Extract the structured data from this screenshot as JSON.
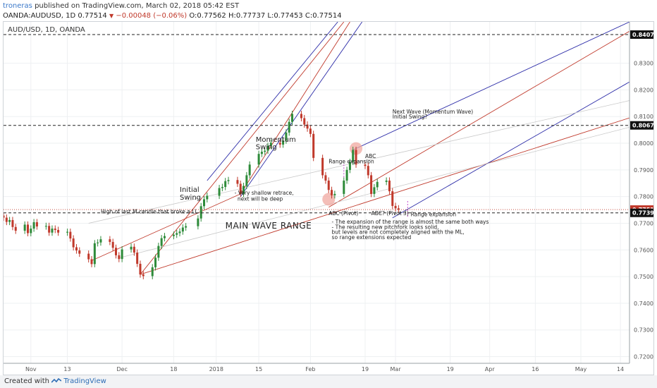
{
  "header": {
    "author": "troneras",
    "published_text": "published on TradingView.com, March 02, 2018 05:42 EST",
    "symbol": "OANDA:AUDUSD, 1D",
    "last": "0.77514",
    "change": "−0.00048 (−0.06%)",
    "ohlc": "O:0.77562 H:0.77737 L:0.77453 C:0.77514"
  },
  "footer": {
    "created_with": "Created with",
    "brand": "TradingView"
  },
  "colors": {
    "up": "#2e8b3a",
    "down": "#c0392b",
    "pitch_red": "#c0392b",
    "pitch_blue": "#2c2ca8",
    "guide": "#c9c9c9",
    "highlight": "#f0a8a0"
  },
  "chart_data": {
    "type": "candlestick",
    "title": "AUD/USD, 1D, OANDA",
    "y_range": [
      0.7175,
      0.8455
    ],
    "x_range": [
      "2017-10-23",
      "2018-05-17"
    ],
    "y_ticks": [
      "0.72000",
      "0.73000",
      "0.74000",
      "0.75000",
      "0.76000",
      "0.77000",
      "0.78000",
      "0.79000",
      "0.80000",
      "0.81000",
      "0.82000",
      "0.83000"
    ],
    "x_ticks": [
      {
        "date": "2017-11-01",
        "label": "Nov"
      },
      {
        "date": "2017-11-13",
        "label": "13"
      },
      {
        "date": "2017-12-01",
        "label": "Dec"
      },
      {
        "date": "2017-12-18",
        "label": "18"
      },
      {
        "date": "2018-01-01",
        "label": "2018"
      },
      {
        "date": "2018-01-15",
        "label": "15"
      },
      {
        "date": "2018-02-01",
        "label": "Feb"
      },
      {
        "date": "2018-02-19",
        "label": "19"
      },
      {
        "date": "2018-03-01",
        "label": "Mar"
      },
      {
        "date": "2018-03-19",
        "label": "19"
      },
      {
        "date": "2018-04-01",
        "label": "Apr"
      },
      {
        "date": "2018-04-16",
        "label": "16"
      },
      {
        "date": "2018-05-01",
        "label": "May"
      },
      {
        "date": "2018-05-14",
        "label": "14"
      }
    ],
    "closes": [
      [
        "2017-10-23",
        0.7721
      ],
      [
        "2017-10-24",
        0.7705
      ],
      [
        "2017-10-25",
        0.7712
      ],
      [
        "2017-10-26",
        0.7686
      ],
      [
        "2017-10-27",
        0.7672
      ],
      [
        "2017-10-30",
        0.7695
      ],
      [
        "2017-10-31",
        0.7663
      ],
      [
        "2017-11-01",
        0.768
      ],
      [
        "2017-11-02",
        0.7704
      ],
      [
        "2017-11-03",
        0.7688
      ],
      [
        "2017-11-06",
        0.769
      ],
      [
        "2017-11-07",
        0.7665
      ],
      [
        "2017-11-08",
        0.768
      ],
      [
        "2017-11-09",
        0.7675
      ],
      [
        "2017-11-10",
        0.7665
      ],
      [
        "2017-11-13",
        0.7668
      ],
      [
        "2017-11-14",
        0.7643
      ],
      [
        "2017-11-15",
        0.761
      ],
      [
        "2017-11-16",
        0.7598
      ],
      [
        "2017-11-17",
        0.7586
      ],
      [
        "2017-11-20",
        0.7565
      ],
      [
        "2017-11-21",
        0.7547
      ],
      [
        "2017-11-22",
        0.7625
      ],
      [
        "2017-11-23",
        0.7628
      ],
      [
        "2017-11-24",
        0.764
      ],
      [
        "2017-11-27",
        0.763
      ],
      [
        "2017-11-28",
        0.7608
      ],
      [
        "2017-11-29",
        0.758
      ],
      [
        "2017-11-30",
        0.7566
      ],
      [
        "2017-12-01",
        0.7602
      ],
      [
        "2017-12-04",
        0.7612
      ],
      [
        "2017-12-05",
        0.759
      ],
      [
        "2017-12-06",
        0.7548
      ],
      [
        "2017-12-07",
        0.7508
      ],
      [
        "2017-12-08",
        0.7502
      ],
      [
        "2017-12-11",
        0.7535
      ],
      [
        "2017-12-12",
        0.7571
      ],
      [
        "2017-12-13",
        0.7615
      ],
      [
        "2017-12-14",
        0.7644
      ],
      [
        "2017-12-15",
        0.7652
      ],
      [
        "2017-12-18",
        0.7657
      ],
      [
        "2017-12-19",
        0.7663
      ],
      [
        "2017-12-20",
        0.7669
      ],
      [
        "2017-12-21",
        0.7684
      ],
      [
        "2017-12-22",
        0.7689
      ],
      [
        "2017-12-26",
        0.7718
      ],
      [
        "2017-12-27",
        0.7764
      ],
      [
        "2017-12-28",
        0.779
      ],
      [
        "2017-12-29",
        0.7803
      ],
      [
        "2018-01-02",
        0.7832
      ],
      [
        "2018-01-03",
        0.7836
      ],
      [
        "2018-01-04",
        0.7858
      ],
      [
        "2018-01-05",
        0.7862
      ],
      [
        "2018-01-08",
        0.7848
      ],
      [
        "2018-01-09",
        0.781
      ],
      [
        "2018-01-10",
        0.784
      ],
      [
        "2018-01-11",
        0.788
      ],
      [
        "2018-01-12",
        0.792
      ],
      [
        "2018-01-15",
        0.796
      ],
      [
        "2018-01-16",
        0.7968
      ],
      [
        "2018-01-17",
        0.7972
      ],
      [
        "2018-01-18",
        0.799
      ],
      [
        "2018-01-19",
        0.8002
      ],
      [
        "2018-01-22",
        0.7995
      ],
      [
        "2018-01-23",
        0.801
      ],
      [
        "2018-01-24",
        0.804
      ],
      [
        "2018-01-25",
        0.808
      ],
      [
        "2018-01-26",
        0.811
      ],
      [
        "2018-01-29",
        0.8094
      ],
      [
        "2018-01-30",
        0.807
      ],
      [
        "2018-01-31",
        0.8055
      ],
      [
        "2018-02-01",
        0.8035
      ],
      [
        "2018-02-02",
        0.7945
      ],
      [
        "2018-02-05",
        0.788
      ],
      [
        "2018-02-06",
        0.786
      ],
      [
        "2018-02-07",
        0.7825
      ],
      [
        "2018-02-08",
        0.7805
      ],
      [
        "2018-02-09",
        0.781
      ],
      [
        "2018-02-12",
        0.786
      ],
      [
        "2018-02-13",
        0.79
      ],
      [
        "2018-02-14",
        0.793
      ],
      [
        "2018-02-15",
        0.7975
      ],
      [
        "2018-02-16",
        0.792
      ],
      [
        "2018-02-19",
        0.7915
      ],
      [
        "2018-02-20",
        0.788
      ],
      [
        "2018-02-21",
        0.781
      ],
      [
        "2018-02-22",
        0.7835
      ],
      [
        "2018-02-23",
        0.7855
      ],
      [
        "2018-02-26",
        0.786
      ],
      [
        "2018-02-27",
        0.782
      ],
      [
        "2018-02-28",
        0.7765
      ],
      [
        "2018-03-01",
        0.7756
      ],
      [
        "2018-03-02",
        0.7751
      ]
    ],
    "horizontal_levels": [
      {
        "value": 0.84073,
        "label": "0.84073",
        "style": "dashed"
      },
      {
        "value": 0.8067,
        "label": "0.80670",
        "style": "dashed"
      },
      {
        "value": 0.77514,
        "label": "0.77514",
        "style": "price",
        "color": "#c0392b"
      },
      {
        "value": 0.7739,
        "label": "0.77390",
        "style": "dashed"
      }
    ],
    "annotations": [
      {
        "text": "Initial",
        "date": "2017-12-20",
        "value": 0.7817,
        "size": "large"
      },
      {
        "text": "Swing",
        "date": "2017-12-20",
        "value": 0.7788,
        "size": "large"
      },
      {
        "text": "Momentum",
        "date": "2018-01-14",
        "value": 0.8006,
        "size": "large"
      },
      {
        "text": "Swing",
        "date": "2018-01-14",
        "value": 0.7977,
        "size": "large"
      },
      {
        "text": "- Very shallow retrace,",
        "date": "2018-01-07",
        "value": 0.7807
      },
      {
        "text": "next will be deep",
        "date": "2018-01-08",
        "value": 0.7785
      },
      {
        "text": "High of last M candle that broke a LL",
        "date": "2017-11-24",
        "value": 0.7737
      },
      {
        "text": "MAIN WAVE RANGE",
        "date": "2018-01-04",
        "value": 0.768,
        "size": "title"
      },
      {
        "text": "Range expansion",
        "date": "2018-02-07",
        "value": 0.7925
      },
      {
        "text": "ABC",
        "date": "2018-02-19",
        "value": 0.7945
      },
      {
        "text": "ABC (Pivot)",
        "date": "2018-02-07",
        "value": 0.773
      },
      {
        "text": "ABC? (Pivot 3)",
        "date": "2018-02-21",
        "value": 0.773
      },
      {
        "text": "Range expansion",
        "date": "2018-03-06",
        "value": 0.7727
      },
      {
        "text": "Next Wave (Momentum Wave)",
        "date": "2018-02-28",
        "value": 0.8111
      },
      {
        "text": "Initial Swing?",
        "date": "2018-02-28",
        "value": 0.8093
      },
      {
        "text": "- The expansion of the range is almost the same both ways",
        "date": "2018-02-08",
        "value": 0.7699
      },
      {
        "text": "- The resulting new pitchfork looks solid,",
        "date": "2018-02-08",
        "value": 0.7679
      },
      {
        "text": "but levels are not completely aligned with the ML,",
        "date": "2018-02-08",
        "value": 0.766
      },
      {
        "text": "so range extensions expected",
        "date": "2018-02-08",
        "value": 0.7641
      }
    ]
  }
}
